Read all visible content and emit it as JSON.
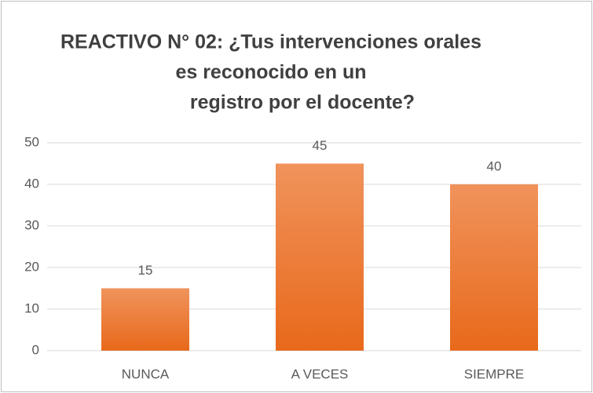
{
  "chart_data": {
    "type": "bar",
    "title": [
      "REACTIVO N° 02: ¿Tus intervenciones orales",
      "es reconocido en un",
      "registro por el docente?"
    ],
    "categories": [
      "NUNCA",
      "A VECES",
      "SIEMPRE"
    ],
    "values": [
      15,
      45,
      40
    ],
    "color": "#ed7d31",
    "ylim": [
      0,
      50
    ],
    "yticks": [
      0,
      10,
      20,
      30,
      40,
      50
    ],
    "grid": true
  }
}
